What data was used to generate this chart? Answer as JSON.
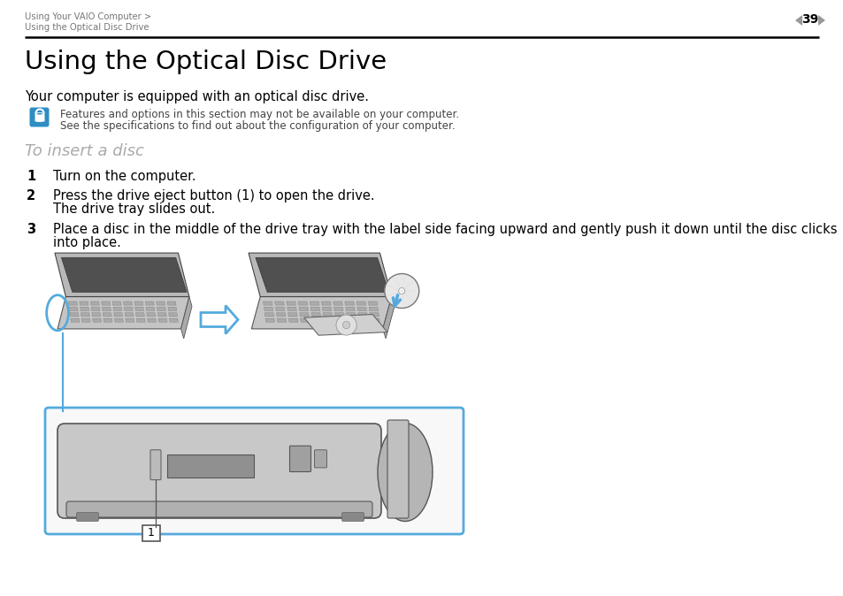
{
  "bg_color": "#ffffff",
  "header_breadcrumb_line1": "Using Your VAIO Computer >",
  "header_breadcrumb_line2": "Using the Optical Disc Drive",
  "header_page_num": "39",
  "title": "Using the Optical Disc Drive",
  "subtitle": "Your computer is equipped with an optical disc drive.",
  "note_icon_color": "#2d8ec4",
  "note_line1": "Features and options in this section may not be available on your computer.",
  "note_line2": "See the specifications to find out about the configuration of your computer.",
  "section_title": "To insert a disc",
  "section_title_color": "#aaaaaa",
  "step1_num": "1",
  "step1_text": "Turn on the computer.",
  "step2_num": "2",
  "step2_text": "Press the drive eject button (1) to open the drive.",
  "step2_sub": "The drive tray slides out.",
  "step3_num": "3",
  "step3_text": "Place a disc in the middle of the drive tray with the label side facing upward and gently push it down until the disc clicks",
  "step3_text2": "into place.",
  "arrow_color": "#55aadd",
  "callout_box_color": "#55aadd",
  "header_gray": "#777777",
  "line_color": "#333333",
  "body_gray": "#c8c8c8",
  "dark_gray": "#555555",
  "med_gray": "#999999",
  "light_gray": "#e0e0e0"
}
